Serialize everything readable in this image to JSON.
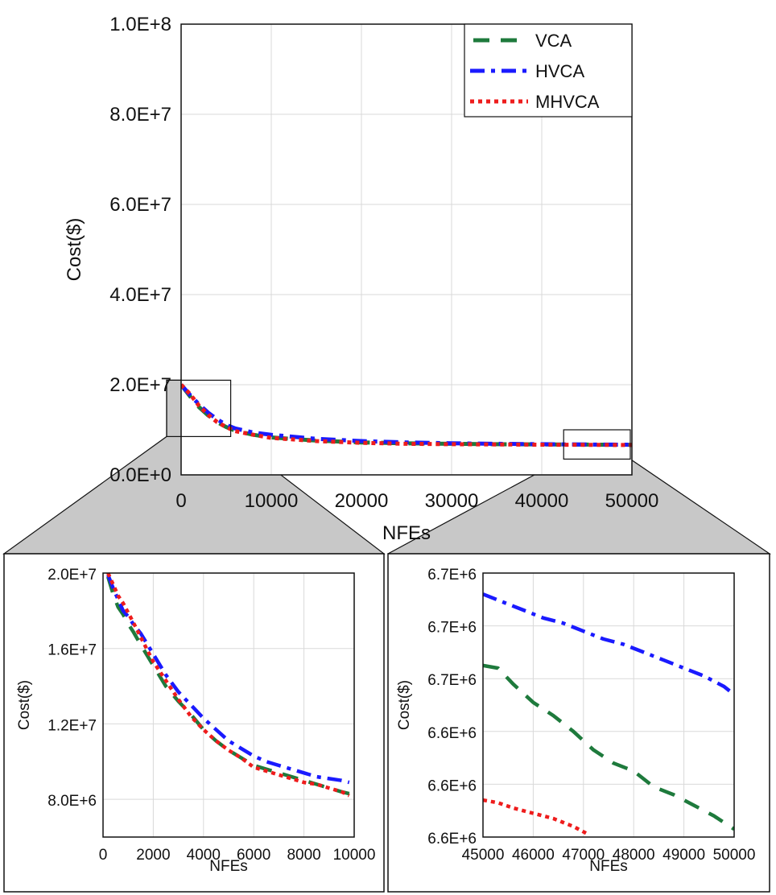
{
  "colors": {
    "VCA": "#1e7a3c",
    "HVCA": "#1a1aff",
    "MHVCA": "#ee1c1c",
    "zoom_fill": "#c8c8c8"
  },
  "chart_data": [
    {
      "id": "main",
      "type": "line",
      "title": "",
      "xlabel": "NFEs",
      "ylabel": "Cost($)",
      "xlim": [
        0,
        50000
      ],
      "ylim": [
        0,
        100000000
      ],
      "x_ticks": [
        0,
        10000,
        20000,
        30000,
        40000,
        50000
      ],
      "x_tick_labels": [
        "0",
        "10000",
        "20000",
        "30000",
        "40000",
        "50000"
      ],
      "y_ticks": [
        0,
        20000000,
        40000000,
        60000000,
        80000000,
        100000000
      ],
      "y_tick_labels": [
        "0.0E+0",
        "2.0E+7",
        "4.0E+7",
        "6.0E+7",
        "8.0E+7",
        "1.0E+8"
      ],
      "legend": {
        "position": "top-right",
        "entries": [
          "VCA",
          "HVCA",
          "MHVCA"
        ]
      },
      "zoom_boxes": [
        {
          "target": "inset-left",
          "xrange": [
            0,
            5500
          ],
          "yrange": [
            8500000,
            21000000
          ]
        },
        {
          "target": "inset-right",
          "xrange": [
            43500,
            50000
          ],
          "yrange": [
            3500000,
            10000000
          ]
        }
      ],
      "series": [
        {
          "name": "VCA",
          "x": [
            0,
            1000,
            2000,
            3000,
            4000,
            5000,
            6000,
            8000,
            10000,
            15000,
            20000,
            25000,
            30000,
            35000,
            40000,
            45000,
            50000
          ],
          "values": [
            20000000,
            17400000,
            15000000,
            13200000,
            11700000,
            10600000,
            9800000,
            8900000,
            8300000,
            7600000,
            7200000,
            7000000,
            6900000,
            6800000,
            6750000,
            6720000,
            6660000
          ]
        },
        {
          "name": "HVCA",
          "x": [
            0,
            1000,
            2000,
            3000,
            4000,
            5000,
            6000,
            8000,
            10000,
            15000,
            20000,
            25000,
            30000,
            35000,
            40000,
            45000,
            50000
          ],
          "values": [
            20000000,
            17700000,
            15600000,
            13800000,
            12300000,
            11100000,
            10300000,
            9400000,
            8900000,
            8000000,
            7500000,
            7200000,
            7000000,
            6900000,
            6800000,
            6740000,
            6690000
          ]
        },
        {
          "name": "MHVCA",
          "x": [
            0,
            1000,
            2000,
            3000,
            4000,
            5000,
            6000,
            8000,
            10000,
            15000,
            20000,
            25000,
            30000,
            35000,
            40000,
            45000,
            50000
          ],
          "values": [
            20000000,
            17900000,
            15300000,
            13300000,
            11700000,
            10600000,
            9700000,
            8900000,
            8200000,
            7500000,
            7100000,
            6900000,
            6800000,
            6750000,
            6700000,
            6660000,
            6620000
          ]
        }
      ]
    },
    {
      "id": "inset-left",
      "type": "line",
      "title": "",
      "xlabel": "NFEs",
      "ylabel": "Cost($)",
      "xlim": [
        0,
        10000
      ],
      "ylim": [
        6000000,
        20000000
      ],
      "x_ticks": [
        0,
        2000,
        4000,
        6000,
        8000,
        10000
      ],
      "x_tick_labels": [
        "0",
        "2000",
        "4000",
        "6000",
        "8000",
        "10000"
      ],
      "y_ticks": [
        8000000,
        12000000,
        16000000,
        20000000
      ],
      "y_tick_labels": [
        "8.0E+6",
        "1.2E+7",
        "1.6E+7",
        "2.0E+7"
      ],
      "series": [
        {
          "name": "VCA",
          "x": [
            200,
            400,
            600,
            800,
            1000,
            1200,
            1500,
            2000,
            2500,
            3000,
            3500,
            4000,
            4500,
            5000,
            5500,
            6000,
            6500,
            7000,
            7500,
            8000,
            8500,
            9000,
            9500,
            9800
          ],
          "values": [
            19800000,
            18900000,
            18200000,
            17800000,
            17300000,
            16900000,
            16200000,
            15100000,
            14000000,
            13200000,
            12500000,
            11700000,
            11100000,
            10600000,
            10200000,
            9800000,
            9600000,
            9400000,
            9200000,
            9000000,
            8800000,
            8600000,
            8400000,
            8300000
          ]
        },
        {
          "name": "HVCA",
          "x": [
            200,
            400,
            600,
            800,
            1000,
            1200,
            1500,
            2000,
            2500,
            3000,
            3500,
            4000,
            4500,
            5000,
            5500,
            6000,
            6500,
            7000,
            7500,
            8000,
            8500,
            9000,
            9500,
            9800
          ],
          "values": [
            19900000,
            19200000,
            18600000,
            18000000,
            17700000,
            17300000,
            16800000,
            15700000,
            14600000,
            13700000,
            13000000,
            12300000,
            11700000,
            11100000,
            10700000,
            10300000,
            10000000,
            9800000,
            9600000,
            9400000,
            9200000,
            9100000,
            9000000,
            8900000
          ]
        },
        {
          "name": "MHVCA",
          "x": [
            200,
            400,
            600,
            800,
            1000,
            1200,
            1500,
            2000,
            2500,
            3000,
            3500,
            4000,
            4500,
            5000,
            5500,
            6000,
            6500,
            7000,
            7500,
            8000,
            8500,
            9000,
            9500,
            9800
          ],
          "values": [
            20000000,
            19400000,
            18800000,
            18400000,
            17900000,
            17400000,
            16600000,
            15300000,
            14300000,
            13300000,
            12400000,
            11700000,
            11100000,
            10600000,
            10200000,
            9700000,
            9500000,
            9300000,
            9100000,
            8900000,
            8800000,
            8600000,
            8400000,
            8200000
          ]
        }
      ]
    },
    {
      "id": "inset-right",
      "type": "line",
      "title": "",
      "xlabel": "NFEs",
      "ylabel": "Cost($)",
      "xlim": [
        45000,
        50000
      ],
      "ylim": [
        6600000,
        6700000
      ],
      "x_ticks": [
        45000,
        46000,
        47000,
        48000,
        49000,
        50000
      ],
      "x_tick_labels": [
        "45000",
        "46000",
        "47000",
        "48000",
        "49000",
        "50000"
      ],
      "y_ticks": [
        6600000,
        6620000,
        6640000,
        6660000,
        6680000,
        6700000
      ],
      "y_tick_labels": [
        "6.6E+6",
        "6.6E+6",
        "6.6E+6",
        "6.7E+6",
        "6.7E+6",
        "6.7E+6"
      ],
      "series": [
        {
          "name": "VCA",
          "x": [
            45000,
            45300,
            45600,
            46000,
            46400,
            46800,
            47200,
            47600,
            48000,
            48400,
            48800,
            49200,
            49600,
            50000
          ],
          "values": [
            6665000,
            6664000,
            6658000,
            6651000,
            6646000,
            6640000,
            6633000,
            6628000,
            6625000,
            6619000,
            6616000,
            6612000,
            6608000,
            6603000
          ]
        },
        {
          "name": "HVCA",
          "x": [
            45000,
            45400,
            45800,
            46200,
            46600,
            47000,
            47400,
            47800,
            48200,
            48600,
            49000,
            49400,
            49800,
            50000
          ],
          "values": [
            6692000,
            6689000,
            6686000,
            6683000,
            6681000,
            6678000,
            6675000,
            6673000,
            6670000,
            6667000,
            6664000,
            6661000,
            6657000,
            6654000
          ]
        },
        {
          "name": "MHVCA",
          "x": [
            45000,
            45300,
            45600,
            46000,
            46400,
            46800,
            47100
          ],
          "values": [
            6614000,
            6613000,
            6611000,
            6609000,
            6607000,
            6604000,
            6601000
          ]
        }
      ]
    }
  ]
}
